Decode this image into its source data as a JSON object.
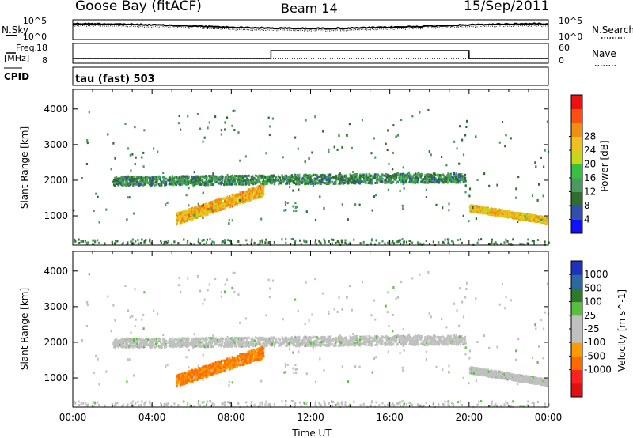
{
  "header": {
    "station": "Goose Bay (fitACF)",
    "beam": "Beam 14",
    "date": "15/Sep/2011"
  },
  "labels": {
    "nsky": "N.Sky",
    "nsearch": "N.Search",
    "freq_line1": "Freq.",
    "freq_line2": "[MHz]",
    "nave": "Nave",
    "cpid": "CPID",
    "mode": "tau (fast) 503",
    "time_ut": "Time UT"
  },
  "noise_panel": {
    "left_ticks": [
      "10^5",
      "10^0"
    ],
    "right_ticks": [
      "10^5",
      "10^0"
    ]
  },
  "freq_panel": {
    "left_ticks": [
      "18",
      "8"
    ],
    "right_ticks": [
      "60",
      "0"
    ],
    "step_start_hour": 10.0,
    "step_end_hour": 20.0
  },
  "chart_data": [
    {
      "type": "heatmap",
      "parameter": "power",
      "xlabel": "",
      "ylabel": "Slant Range [km]",
      "x_ticks": [
        "00:00",
        "04:00",
        "08:00",
        "12:00",
        "16:00",
        "20:00",
        "00:00"
      ],
      "xlim_hours": [
        0,
        24
      ],
      "y_ticks": [
        1000,
        2000,
        3000,
        4000
      ],
      "ylim_km": [
        180,
        4550
      ],
      "colorbar": {
        "title": "Power [dB]",
        "ticks": [
          "4",
          "8",
          "12",
          "16",
          "20",
          "24",
          "28"
        ],
        "range": [
          0,
          30
        ],
        "colors": [
          "#1010ff",
          "#3050b0",
          "#306e30",
          "#4a9a60",
          "#38c040",
          "#c8d818",
          "#f0c020",
          "#f09010",
          "#ff5010",
          "#f01010"
        ]
      },
      "features": [
        {
          "name": "main band",
          "start_hour": 2.0,
          "end_hour": 19.8,
          "range_km_start": 2000,
          "range_km_end": 2100,
          "power_db": 9
        },
        {
          "name": "enhanced echo",
          "start_hour": 5.2,
          "end_hour": 9.6,
          "range_km_start": 950,
          "range_km_end": 1750,
          "power_db": 21
        },
        {
          "name": "post-20UT echo",
          "start_hour": 20.0,
          "end_hour": 23.9,
          "range_km_start": 1250,
          "range_km_end": 900,
          "power_db": 20
        }
      ]
    },
    {
      "type": "heatmap",
      "parameter": "velocity",
      "xlabel": "Time UT",
      "ylabel": "Slant Range [km]",
      "x_ticks": [
        "00:00",
        "04:00",
        "08:00",
        "12:00",
        "16:00",
        "20:00",
        "00:00"
      ],
      "xlim_hours": [
        0,
        24
      ],
      "y_ticks": [
        1000,
        2000,
        3000,
        4000
      ],
      "ylim_km": [
        180,
        4550
      ],
      "colorbar": {
        "title": "Velocity [m s^-1]",
        "ticks": [
          "1000",
          "500",
          "100",
          "25",
          "-25",
          "-100",
          "-500",
          "-1000"
        ],
        "colors": [
          "#2030c0",
          "#2a6aa0",
          "#2d7a2d",
          "#58c040",
          "#c0c0c0",
          "#c0c0c0",
          "#ff9a00",
          "#ff6a00",
          "#ff2020",
          "#e01010"
        ]
      },
      "features": [
        {
          "name": "main band",
          "start_hour": 2.0,
          "end_hour": 19.8,
          "velocity_class": "-25..25"
        },
        {
          "name": "enhanced echo",
          "start_hour": 5.2,
          "end_hour": 9.6,
          "velocity_class": "-500..-100"
        },
        {
          "name": "post-20UT echo",
          "start_hour": 20.0,
          "end_hour": 23.9,
          "velocity_class": "-25..25"
        }
      ]
    }
  ]
}
